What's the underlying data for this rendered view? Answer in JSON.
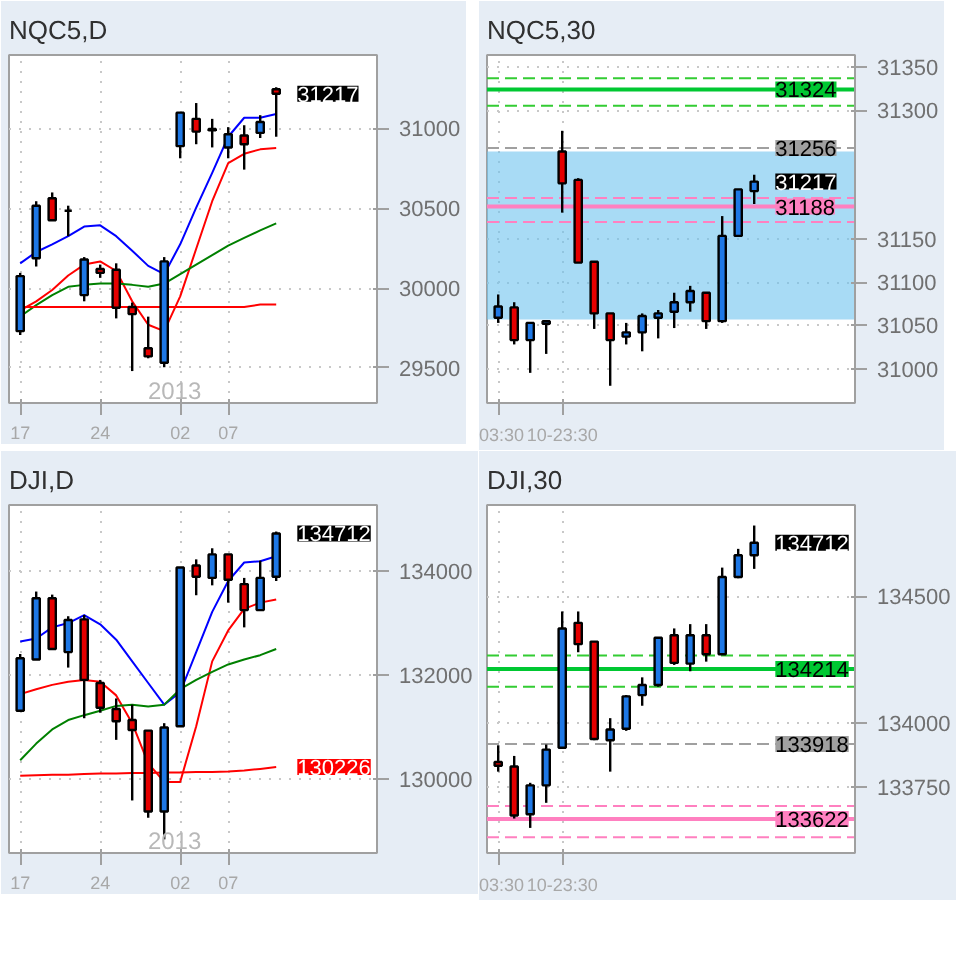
{
  "chart_data": [
    {
      "type": "candlestick",
      "title": "NQC5,D",
      "categories": [
        "17",
        null,
        null,
        null,
        null,
        "24",
        null,
        null,
        null,
        null,
        "02",
        null,
        null,
        "07",
        null,
        null,
        null
      ],
      "ohlc": [
        [
          29730,
          30095,
          29706,
          30075
        ],
        [
          30187,
          30544,
          30135,
          30516
        ],
        [
          30563,
          30599,
          30425,
          30425
        ],
        [
          30484,
          30516,
          30325,
          30484
        ],
        [
          29956,
          30194,
          29917,
          30179
        ],
        [
          30119,
          30147,
          30064,
          30095
        ],
        [
          30115,
          30155,
          29810,
          29877
        ],
        [
          29881,
          29909,
          29480,
          29837
        ],
        [
          29623,
          29821,
          29560,
          29572
        ],
        [
          29532,
          30194,
          29504,
          30167
        ],
        [
          30889,
          31099,
          30813,
          31099
        ],
        [
          31060,
          31159,
          30901,
          30980
        ],
        [
          30988,
          31060,
          30881,
          30996
        ],
        [
          30881,
          31008,
          30813,
          30964
        ],
        [
          30956,
          31020,
          30742,
          30901
        ],
        [
          30972,
          31083,
          30940,
          31040
        ],
        [
          31245,
          31258,
          30948,
          31217
        ]
      ],
      "value_labels": [
        null,
        null,
        null,
        null,
        null,
        null,
        null,
        null,
        null,
        null,
        null,
        null,
        null,
        null,
        null,
        null,
        "31217"
      ],
      "colors": [
        "#1e78e6",
        "#1e78e6",
        "#e60000",
        "#000000",
        "#1e78e6",
        "#e60000",
        "#e60000",
        "#e60000",
        "#e60000",
        "#1e78e6",
        "#1e78e6",
        "#e60000",
        "#1e78e6",
        "#1e78e6",
        "#e60000",
        "#1e78e6",
        "#e60000"
      ],
      "series": [
        {
          "type": "line",
          "color": "#0000ff",
          "values": [
            30155,
            30226,
            30274,
            30325,
            30385,
            30393,
            30325,
            30234,
            30139,
            30087,
            30274,
            30504,
            30722,
            30948,
            31067,
            31067,
            31091
          ]
        },
        {
          "type": "line",
          "color": "#ff0000",
          "values": [
            29861,
            29917,
            29988,
            30079,
            30147,
            30167,
            30107,
            29917,
            29770,
            29730,
            29948,
            30246,
            30544,
            30782,
            30841,
            30869,
            30877
          ]
        },
        {
          "type": "line",
          "color": "#008000",
          "values": [
            29822,
            29893,
            29956,
            30008,
            30020,
            30028,
            30028,
            30020,
            30008,
            30028,
            30087,
            30147,
            30206,
            30266,
            30314,
            30361,
            30405
          ]
        },
        {
          "type": "line",
          "color": "#ff0000",
          "values": [
            29881,
            29881,
            29881,
            29881,
            29881,
            29881,
            29881,
            29881,
            29881,
            29881,
            29881,
            29881,
            29881,
            29881,
            29881,
            29897,
            29897
          ]
        }
      ],
      "ylim": [
        29280,
        31460
      ],
      "yticks": [
        29500,
        30000,
        30500,
        31000
      ],
      "grid": true,
      "annotations": [
        "2013"
      ]
    },
    {
      "type": "candlestick",
      "title": "NQC5,30",
      "categories": [
        "03:30",
        null,
        null,
        null,
        "10-23:30",
        null,
        null,
        null,
        null,
        null,
        null,
        null,
        null,
        null,
        null,
        null,
        null
      ],
      "ohlc": [
        [
          31059,
          31086,
          31053,
          31072
        ],
        [
          31071,
          31077,
          31028,
          31033
        ],
        [
          31033,
          31053,
          30995,
          31053
        ],
        [
          31052,
          31055,
          31017,
          31055
        ],
        [
          31252,
          31276,
          31181,
          31215
        ],
        [
          31219,
          31221,
          31123,
          31123
        ],
        [
          31124,
          31124,
          31046,
          31064
        ],
        [
          31064,
          31064,
          30980,
          31033
        ],
        [
          31037,
          31053,
          31028,
          31042
        ],
        [
          31042,
          31064,
          31020,
          31061
        ],
        [
          31059,
          31068,
          31035,
          31064
        ],
        [
          31066,
          31088,
          31047,
          31077
        ],
        [
          31077,
          31096,
          31066,
          31090
        ],
        [
          31088,
          31088,
          31046,
          31055
        ],
        [
          31055,
          31177,
          31053,
          31154
        ],
        [
          31154,
          31208,
          31154,
          31208
        ],
        [
          31206,
          31225,
          31191,
          31217
        ]
      ],
      "value_labels": [
        null,
        null,
        null,
        null,
        null,
        null,
        null,
        null,
        null,
        null,
        null,
        null,
        null,
        null,
        null,
        null,
        "31217"
      ],
      "colors": [
        "#1e78e6",
        "#e60000",
        "#1e78e6",
        "#1e78e6",
        "#e60000",
        "#e60000",
        "#e60000",
        "#e60000",
        "#1e78e6",
        "#1e78e6",
        "#1e78e6",
        "#1e78e6",
        "#1e78e6",
        "#e60000",
        "#1e78e6",
        "#1e78e6",
        "#1e78e6"
      ],
      "ylim": [
        30960,
        31364
      ],
      "yticks": [
        31000,
        31050,
        31100,
        31150,
        31300,
        31350
      ],
      "grid": true,
      "ref_lines": [
        {
          "axis": "y",
          "value": 31337,
          "label": null,
          "color": "#33cc33",
          "line_style": "dashed"
        },
        {
          "axis": "y",
          "value": 31324,
          "label": "31324",
          "color": "#00c832",
          "line_style": "solid"
        },
        {
          "axis": "y",
          "value": 31305,
          "label": null,
          "color": "#33cc33",
          "line_style": "dashed"
        },
        {
          "axis": "y",
          "value": 31256,
          "label": "31256",
          "color": "#a0a0a0",
          "line_style": "dashed"
        },
        {
          "axis": "y",
          "value": 31198,
          "label": null,
          "color": "#ff80c0",
          "line_style": "dashed"
        },
        {
          "axis": "y",
          "value": 31188,
          "label": "31188",
          "color": "#ff80c0",
          "line_style": "solid"
        },
        {
          "axis": "y",
          "value": 31170,
          "label": null,
          "color": "#ff80c0",
          "line_style": "dashed"
        }
      ],
      "bands": [
        {
          "axis": "y",
          "from": 31057,
          "to": 31252,
          "label": null,
          "color": "#6ec3ee"
        }
      ]
    },
    {
      "type": "candlestick",
      "title": "DJI,D",
      "categories": [
        "17",
        null,
        null,
        null,
        null,
        "24",
        null,
        null,
        null,
        null,
        "02",
        null,
        null,
        "07",
        null,
        null,
        null
      ],
      "ohlc": [
        [
          131306,
          132397,
          131306,
          132314
        ],
        [
          132291,
          133596,
          132291,
          133466
        ],
        [
          133466,
          133537,
          132493,
          132493
        ],
        [
          132433,
          133122,
          132136,
          133050
        ],
        [
          133062,
          133145,
          131163,
          131899
        ],
        [
          131840,
          131899,
          131270,
          131365
        ],
        [
          131341,
          131543,
          130748,
          131104
        ],
        [
          131128,
          131424,
          129584,
          130938
        ],
        [
          130926,
          130926,
          129252,
          129371
        ],
        [
          129371,
          131068,
          128837,
          130985
        ],
        [
          131009,
          134059,
          131009,
          134059
        ],
        [
          134095,
          134214,
          133525,
          133881
        ],
        [
          133858,
          134427,
          133715,
          134309
        ],
        [
          134309,
          134309,
          133383,
          133822
        ],
        [
          133739,
          133858,
          132908,
          133240
        ],
        [
          133240,
          134190,
          133240,
          133858
        ],
        [
          133881,
          134748,
          133798,
          134712
        ]
      ],
      "value_labels": [
        null,
        null,
        null,
        null,
        null,
        null,
        null,
        null,
        null,
        null,
        null,
        null,
        null,
        null,
        null,
        null,
        "134712"
      ],
      "colors": [
        "#1e78e6",
        "#1e78e6",
        "#e60000",
        "#1e78e6",
        "#e60000",
        "#e60000",
        "#e60000",
        "#e60000",
        "#e60000",
        "#1e78e6",
        "#1e78e6",
        "#e60000",
        "#1e78e6",
        "#e60000",
        "#e60000",
        "#1e78e6",
        "#1e78e6"
      ],
      "series": [
        {
          "type": "line",
          "color": "#0000ff",
          "values": [
            132635,
            132694,
            132908,
            132991,
            133145,
            132967,
            132671,
            132255,
            131840,
            131424,
            131662,
            132433,
            133205,
            133798,
            134154,
            134178,
            134273
          ]
        },
        {
          "type": "line",
          "color": "#ff0000",
          "values": [
            131626,
            131721,
            131804,
            131863,
            131899,
            131863,
            131602,
            131068,
            130296,
            129940,
            129940,
            131009,
            132255,
            132849,
            133264,
            133383,
            133442
          ]
        },
        {
          "type": "line",
          "color": "#008000",
          "values": [
            130356,
            130676,
            130949,
            131128,
            131222,
            131306,
            131400,
            131424,
            131389,
            131424,
            131721,
            131899,
            132053,
            132196,
            132291,
            132374,
            132493
          ]
        },
        {
          "type": "line",
          "color": "#ff0000",
          "values": [
            130060,
            130070,
            130080,
            130080,
            130090,
            130100,
            130100,
            130110,
            130110,
            130120,
            130120,
            130130,
            130130,
            130140,
            130160,
            130190,
            130226
          ],
          "value_labels": [
            null,
            null,
            null,
            null,
            null,
            null,
            null,
            null,
            null,
            null,
            null,
            null,
            null,
            null,
            null,
            null,
            "130226"
          ]
        }
      ],
      "ylim": [
        128575,
        135258
      ],
      "yticks": [
        130000,
        132000,
        134000
      ],
      "grid": true,
      "annotations": [
        "2013"
      ]
    },
    {
      "type": "candlestick",
      "title": "DJI,30",
      "categories": [
        "03:30",
        null,
        null,
        null,
        "10-23:30",
        null,
        null,
        null,
        null,
        null,
        null,
        null,
        null,
        null,
        null,
        null,
        null
      ],
      "ohlc": [
        [
          133847,
          133913,
          133809,
          133832
        ],
        [
          133829,
          133871,
          133624,
          133636
        ],
        [
          133641,
          133765,
          133587,
          133755
        ],
        [
          133755,
          133916,
          133686,
          133896
        ],
        [
          133903,
          134441,
          133903,
          134374
        ],
        [
          134396,
          134441,
          134280,
          134312
        ],
        [
          134322,
          134322,
          133933,
          133938
        ],
        [
          133933,
          134020,
          133809,
          133975
        ],
        [
          133978,
          134111,
          133970,
          134106
        ],
        [
          134111,
          134181,
          134069,
          134151
        ],
        [
          134151,
          134337,
          134144,
          134337
        ],
        [
          134347,
          134374,
          134230,
          134238
        ],
        [
          134235,
          134391,
          134205,
          134347
        ],
        [
          134347,
          134391,
          134243,
          134272
        ],
        [
          134272,
          134614,
          134272,
          134577
        ],
        [
          134577,
          134688,
          134572,
          134663
        ],
        [
          134663,
          134780,
          134609,
          134712
        ]
      ],
      "value_labels": [
        null,
        null,
        null,
        null,
        null,
        null,
        null,
        null,
        null,
        null,
        null,
        null,
        null,
        null,
        null,
        null,
        "134712"
      ],
      "colors": [
        "#e60000",
        "#e60000",
        "#1e78e6",
        "#1e78e6",
        "#1e78e6",
        "#e60000",
        "#e60000",
        "#1e78e6",
        "#1e78e6",
        "#1e78e6",
        "#1e78e6",
        "#e60000",
        "#1e78e6",
        "#e60000",
        "#1e78e6",
        "#1e78e6",
        "#1e78e6"
      ],
      "ylim": [
        133488,
        134861
      ],
      "yticks": [
        133750,
        134000,
        134500
      ],
      "grid": true,
      "ref_lines": [
        {
          "axis": "y",
          "value": 134267,
          "label": null,
          "color": "#33cc33",
          "line_style": "dashed"
        },
        {
          "axis": "y",
          "value": 134214,
          "label": "134214",
          "color": "#00c832",
          "line_style": "solid"
        },
        {
          "axis": "y",
          "value": 134144,
          "label": null,
          "color": "#33cc33",
          "line_style": "dashed"
        },
        {
          "axis": "y",
          "value": 133918,
          "label": "133918",
          "color": "#a0a0a0",
          "line_style": "dashed"
        },
        {
          "axis": "y",
          "value": 133673,
          "label": null,
          "color": "#ff80c0",
          "line_style": "dashed"
        },
        {
          "axis": "y",
          "value": 133622,
          "label": "133622",
          "color": "#ff80c0",
          "line_style": "solid"
        },
        {
          "axis": "y",
          "value": 133550,
          "label": null,
          "color": "#ff80c0",
          "line_style": "dashed"
        }
      ]
    }
  ]
}
